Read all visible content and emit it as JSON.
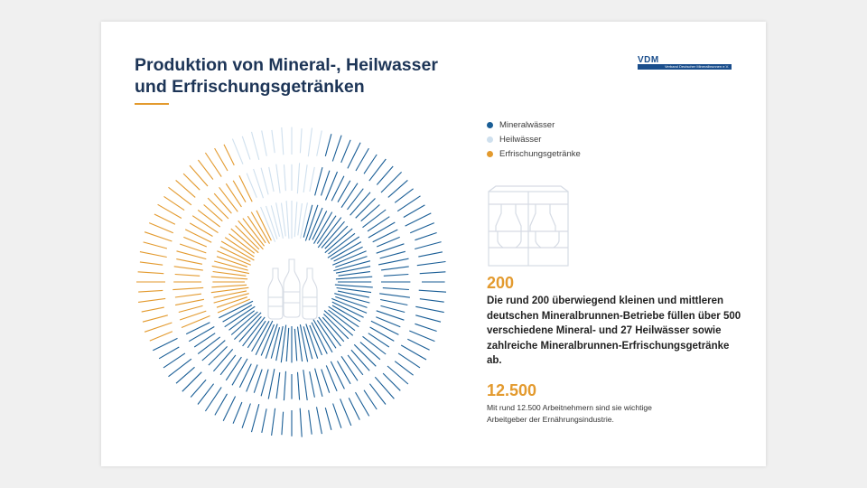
{
  "title_lines": [
    "Produktion von Mineral-, Heilwasser",
    "und Erfrischungsgetränken"
  ],
  "logo": {
    "wordmark": "VDM",
    "subtitle": "Verband Deutscher Mineralbrunnen e.V."
  },
  "legend": [
    {
      "label": "Mineralwässer",
      "color": "#1a5e96"
    },
    {
      "label": "Heilwässer",
      "color": "#cfe0ee"
    },
    {
      "label": "Erfrischungsgetränke",
      "color": "#e39a2e"
    }
  ],
  "colors": {
    "navy": "#1d3557",
    "accent": "#e39a2e",
    "blue": "#1a5e96",
    "lightblue": "#cfe0ee",
    "gray": "#d6dbe4"
  },
  "illustration_icons": [
    "three-bottles-icon",
    "bottle-crate-icon"
  ],
  "stat_1": {
    "number": "200",
    "text": "Die rund 200 überwiegend kleinen und mittleren deutschen Mineralbrunnen-Betriebe füllen über 500 verschiedene Mineral- und 27 Heilwässer sowie zahlreiche Mineralbrunnen-Erfrischungs­getränke ab."
  },
  "stat_2": {
    "number": "12.500",
    "text": "Mit rund 12.500 Arbeitnehmern sind sie wichtige Arbeitgeber der Ernährungsindustrie."
  }
}
